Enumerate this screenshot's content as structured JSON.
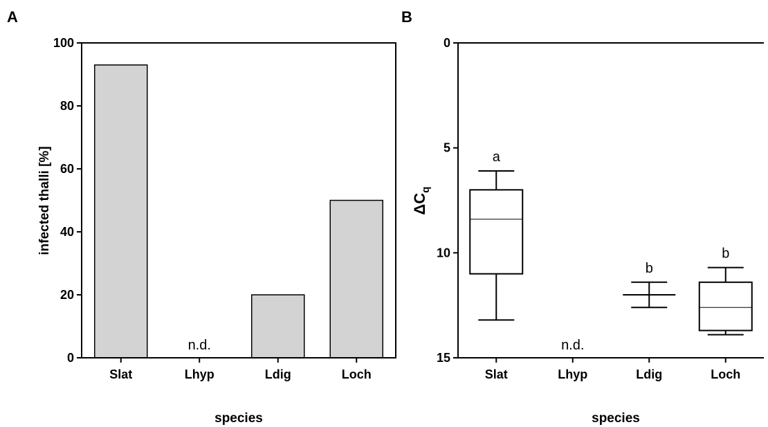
{
  "chart_data": [
    {
      "panel": "A",
      "type": "bar",
      "xlabel": "species",
      "ylabel": "infected thalli [%]",
      "categories": [
        "Slat",
        "Lhyp",
        "Ldig",
        "Loch"
      ],
      "values": [
        93,
        0,
        20,
        50
      ],
      "ylim": [
        0,
        100
      ],
      "yticks": [
        0,
        20,
        40,
        60,
        80,
        100
      ],
      "annotations": [
        {
          "category": "Lhyp",
          "text": "n.d."
        }
      ],
      "grid": false
    },
    {
      "panel": "B",
      "type": "box",
      "xlabel": "species",
      "ylabel": "ΔC",
      "ylabel_subscript": "q",
      "y_inverted": true,
      "categories": [
        "Slat",
        "Lhyp",
        "Ldig",
        "Loch"
      ],
      "ylim": [
        0,
        15
      ],
      "yticks": [
        0,
        5,
        10,
        15
      ],
      "boxes": [
        {
          "category": "Slat",
          "min": 6.1,
          "q1": 7.0,
          "median": 8.4,
          "q3": 11.0,
          "max": 13.2,
          "letter": "a"
        },
        {
          "category": "Lhyp",
          "nd": true,
          "text": "n.d."
        },
        {
          "category": "Ldig",
          "min": 11.4,
          "q1": 12.0,
          "median": 12.0,
          "q3": 12.0,
          "max": 12.6,
          "letter": "b"
        },
        {
          "category": "Loch",
          "min": 10.7,
          "q1": 11.4,
          "median": 12.6,
          "q3": 13.7,
          "max": 13.9,
          "letter": "b"
        }
      ],
      "grid": false
    }
  ]
}
